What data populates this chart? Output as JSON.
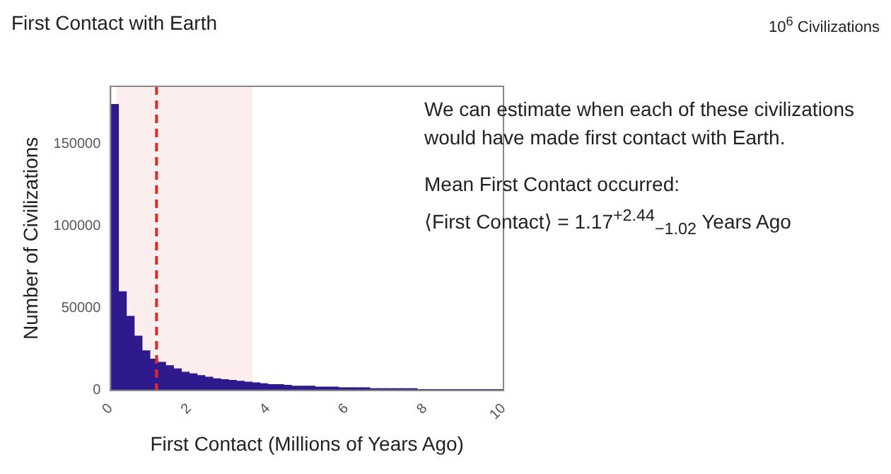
{
  "chart_data": {
    "type": "histogram",
    "title": "First Contact with Earth",
    "subtitle": "10$^{6}$ Civilizations",
    "xlabel": "First Contact (Millions of Years Ago)",
    "ylabel": "Number of Civilizations",
    "annotations": [
      "We can estimate when each of these civilizations would have made first contact with Earth.",
      "Mean First Contact occurred:",
      "⟨First Contact⟩ = 1.17$^{+2.44}$$_{−1.02}$ Years Ago"
    ],
    "bins": [
      0,
      0.2,
      0.4,
      0.6,
      0.8,
      1,
      1.2,
      1.4,
      1.6,
      1.8,
      2,
      2.2,
      2.4,
      2.6,
      2.8,
      3,
      3.2,
      3.4,
      3.6,
      3.8,
      4,
      4.2,
      4.4,
      4.6,
      4.8,
      5,
      5.2,
      5.4,
      5.6,
      5.8,
      6,
      6.2,
      6.4,
      6.6,
      6.8,
      7,
      7.2,
      7.4,
      7.6,
      7.8,
      8,
      8.2,
      8.4,
      8.6,
      8.8,
      9,
      9.2,
      9.4,
      9.6,
      9.8,
      10
    ],
    "values": [
      174000,
      60000,
      45000,
      33000,
      24000,
      19000,
      17000,
      15000,
      13000,
      11000,
      10000,
      9000,
      8000,
      7000,
      6500,
      6000,
      5500,
      5000,
      4500,
      4000,
      3500,
      3500,
      3000,
      2500,
      2500,
      2500,
      2000,
      2000,
      2000,
      1500,
      1500,
      1500,
      1500,
      1000,
      1000,
      1000,
      1000,
      1000,
      1000,
      500,
      500,
      500,
      500,
      500,
      500,
      500,
      500,
      500,
      500,
      500
    ],
    "color": "#2e1a8c",
    "xlim": [
      0,
      10
    ],
    "xticks": [
      0,
      2,
      4,
      6,
      8,
      10
    ],
    "ylim": [
      0,
      185000
    ],
    "yticks": [
      0,
      50000,
      100000,
      150000
    ],
    "ref_lines": [
      {
        "axis": "x",
        "value": 1.17,
        "color": "#dd2a2a",
        "line_style": "dashed"
      }
    ],
    "bands": [
      {
        "axis": "x",
        "from": 0.15,
        "to": 3.61,
        "color": "#fdeeee"
      }
    ]
  }
}
